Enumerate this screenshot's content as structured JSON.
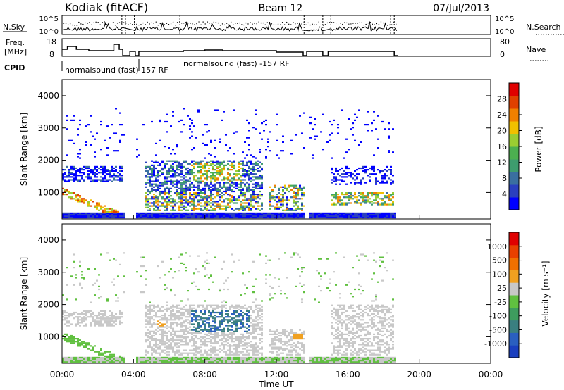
{
  "header": {
    "site": "Kodiak (fitACF)",
    "beam": "Beam 12",
    "date": "07/Jul/2013"
  },
  "info_panel": {
    "nsky_label": "N.Sky",
    "nsky_ticks": [
      "10^5",
      "10^0"
    ],
    "nsearch_label": "N.Search",
    "freq_label_1": "Freq.",
    "freq_label_2": "[MHz]",
    "freq_ticks": [
      "18",
      "8"
    ],
    "nave_label": "Nave",
    "nave_ticks": [
      "80",
      "0"
    ],
    "cpid_label": "CPID",
    "cpid_1": "normalsound (fast) 157 RF",
    "cpid_2": "normalsound (fast) -157 RF"
  },
  "chart_data": [
    {
      "type": "heatmap",
      "panel": "power",
      "ylabel": "Slant Range [km]",
      "ylim": [
        180,
        4500
      ],
      "yticks": [
        1000,
        2000,
        3000,
        4000
      ],
      "xlim": [
        0,
        24
      ],
      "colorbar_label": "Power [dB]",
      "colorbar_ticks": [
        "28",
        "24",
        "20",
        "16",
        "12",
        "8",
        "4"
      ],
      "colorbar_colors": [
        "#0000ff",
        "#2a3fbf",
        "#3a6fa0",
        "#3e9c6e",
        "#4caf50",
        "#9acd32",
        "#f0c000",
        "#f08000",
        "#e04000",
        "#e00000"
      ]
    },
    {
      "type": "heatmap",
      "panel": "velocity",
      "ylabel": "Slant Range [km]",
      "ylim": [
        180,
        4500
      ],
      "yticks": [
        1000,
        2000,
        3000,
        4000
      ],
      "xlim": [
        0,
        24
      ],
      "xlabel": "Time UT",
      "xticks": [
        "00:00",
        "04:00",
        "08:00",
        "12:00",
        "16:00",
        "20:00",
        "00:00"
      ],
      "colorbar_label": "Velocity [m s⁻¹]",
      "colorbar_ticks": [
        "1000",
        "500",
        "100",
        "25",
        "-25",
        "-100",
        "-500",
        "-1000"
      ],
      "colorbar_colors": [
        "#1a3fbf",
        "#2a5fc0",
        "#3a7f80",
        "#3e9c5e",
        "#60c040",
        "#c8c8c8",
        "#f0a020",
        "#f07000",
        "#e84000",
        "#e00000"
      ]
    }
  ]
}
